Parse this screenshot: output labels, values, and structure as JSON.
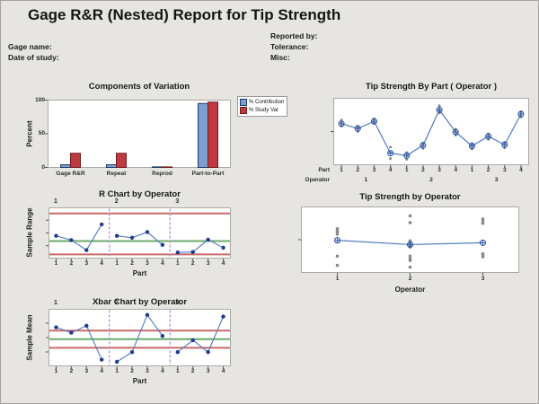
{
  "page": {
    "title": "Gage R&R (Nested) Report for Tip Strength",
    "header_fields_left": [
      {
        "label": "Gage name:",
        "value": ""
      },
      {
        "label": "Date of study:",
        "value": ""
      }
    ],
    "header_fields_right": [
      {
        "label": "Reported by:",
        "value": ""
      },
      {
        "label": "Tolerance:",
        "value": ""
      },
      {
        "label": "Misc:",
        "value": ""
      }
    ]
  },
  "colors": {
    "background": "#E7E5E2",
    "plot_bg": "#FFFFFF",
    "plot_border": "#ABA9A6",
    "line_blue": "#4F7CBF",
    "point_navy": "#203B8E",
    "mean_marker_blue": "#2B55A8",
    "control_red": "#C96A6A",
    "center_green": "#6DAA6D",
    "separator_purple": "#B192D9",
    "dot_gray": "#8A8A8A",
    "tick_color": "#555555"
  },
  "chart_data": [
    {
      "id": "components_of_variation",
      "type": "bar",
      "title": "Components of Variation",
      "ylabel": "Percent",
      "ylim": [
        0,
        100
      ],
      "yticks": [
        0,
        50,
        100
      ],
      "categories": [
        "Gage R&R",
        "Repeat",
        "Reprod",
        "Part-to-Part"
      ],
      "series": [
        {
          "name": "% Contribution",
          "color": "#7B9FD3",
          "border": "#1F3A63",
          "values": [
            4,
            4,
            0.5,
            95
          ]
        },
        {
          "name": "% Study Var",
          "color": "#BE3A3E",
          "border": "#6E1A1E",
          "values": [
            21,
            21,
            0.7,
            97
          ]
        }
      ],
      "legend_position": "right",
      "grid": false
    },
    {
      "id": "tip_strength_by_part",
      "type": "line",
      "title": "Tip Strength By Part ( Operator )",
      "y_units": "relative 0-1 (no numeric y-axis labels shown)",
      "x_rows": [
        {
          "header": "Part",
          "ticks": [
            "1",
            "2",
            "3",
            "4",
            "1",
            "2",
            "3",
            "4",
            "1",
            "2",
            "3",
            "4"
          ]
        },
        {
          "header": "Operator",
          "ticks": [
            "1",
            "2",
            "3"
          ]
        }
      ],
      "means": [
        0.63,
        0.55,
        0.67,
        0.14,
        0.1,
        0.27,
        0.86,
        0.49,
        0.26,
        0.42,
        0.28,
        0.79
      ],
      "observations": [
        [
          0.69,
          0.64,
          0.59
        ],
        [
          0.59,
          0.55,
          0.5
        ],
        [
          0.71,
          0.67,
          0.63
        ],
        [
          0.24,
          0.15,
          0.05
        ],
        [
          0.15,
          0.1,
          0.04
        ],
        [
          0.31,
          0.27,
          0.22
        ],
        [
          0.93,
          0.87,
          0.81
        ],
        [
          0.54,
          0.49,
          0.44
        ],
        [
          0.3,
          0.26,
          0.21
        ],
        [
          0.46,
          0.42,
          0.37
        ],
        [
          0.32,
          0.28,
          0.23
        ],
        [
          0.83,
          0.79,
          0.74
        ]
      ]
    },
    {
      "id": "r_chart_by_operator",
      "type": "control",
      "title": "R Chart by Operator",
      "ylabel": "Sample Range",
      "xlabel": "Part",
      "operators": [
        "1",
        "2",
        "3"
      ],
      "x_ticks": [
        "1",
        "2",
        "3",
        "4",
        "1",
        "2",
        "3",
        "4",
        "1",
        "2",
        "3",
        "4"
      ],
      "limits": {
        "ucl": 0.91,
        "center": 0.33,
        "lcl": 0.05
      },
      "values": [
        0.44,
        0.35,
        0.14,
        0.68,
        0.44,
        0.4,
        0.52,
        0.25,
        0.09,
        0.1,
        0.36,
        0.19
      ],
      "y_units": "relative 0-1 (no numeric y-axis labels shown)"
    },
    {
      "id": "tip_strength_by_operator",
      "type": "dot",
      "title": "Tip Strength by Operator",
      "xlabel": "Operator",
      "categories": [
        "1",
        "2",
        "3"
      ],
      "means": [
        0.49,
        0.42,
        0.45
      ],
      "observations": [
        [
          0.68,
          0.65,
          0.62,
          0.59,
          0.23,
          0.08
        ],
        [
          0.89,
          0.78,
          0.48,
          0.45,
          0.41,
          0.38,
          0.23,
          0.19,
          0.16,
          0.05
        ],
        [
          0.84,
          0.81,
          0.77,
          0.27,
          0.25,
          0.22
        ]
      ],
      "y_units": "relative 0-1 (no numeric y-axis labels shown)"
    },
    {
      "id": "xbar_chart_by_operator",
      "type": "control",
      "title": "Xbar Chart by Operator",
      "ylabel": "Sample Mean",
      "xlabel": "Part",
      "operators": [
        "1",
        "2",
        "3"
      ],
      "x_ticks": [
        "1",
        "2",
        "3",
        "4",
        "1",
        "2",
        "3",
        "4",
        "1",
        "2",
        "3",
        "4"
      ],
      "limits": {
        "ucl": 0.63,
        "center": 0.47,
        "lcl": 0.31
      },
      "values": [
        0.69,
        0.59,
        0.72,
        0.09,
        0.05,
        0.23,
        0.92,
        0.53,
        0.23,
        0.45,
        0.23,
        0.89
      ],
      "y_units": "relative 0-1 (no numeric y-axis labels shown)"
    }
  ]
}
